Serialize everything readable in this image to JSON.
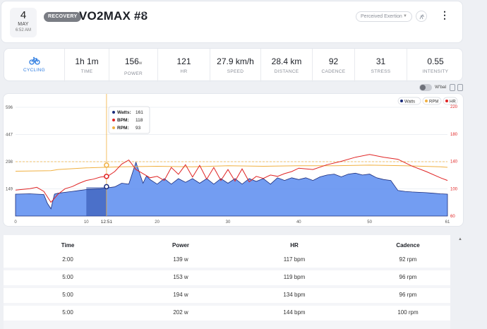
{
  "header": {
    "date_day": "4",
    "date_month": "MAY",
    "date_time": "6:52 AM",
    "badge": "RECOVERY",
    "title": "VO2MAX #8",
    "pencil_icon": "pencil-icon",
    "perceived_exertion_placeholder": "Perceived Exertion",
    "strava_icon": "strava-icon",
    "menu_icon": "more-vertical-icon"
  },
  "stats": [
    {
      "value": "",
      "unit": "",
      "label": "CYCLING",
      "icon": "bicycle-icon"
    },
    {
      "value": "1h 1m",
      "unit": "",
      "label": "TIME"
    },
    {
      "value": "156",
      "unit": "w",
      "label": "POWER"
    },
    {
      "value": "121",
      "unit": "",
      "label": "HR"
    },
    {
      "value": "27.9 km/h",
      "unit": "",
      "label": "SPEED"
    },
    {
      "value": "28.4 km",
      "unit": "",
      "label": "DISTANCE"
    },
    {
      "value": "92",
      "unit": "",
      "label": "CADENCE"
    },
    {
      "value": "31",
      "unit": "",
      "label": "STRESS"
    },
    {
      "value": "0.55",
      "unit": "",
      "label": "INTENSITY"
    }
  ],
  "chart_toolbar": {
    "wbal_label": "W'bal"
  },
  "chart_data": {
    "type": "area",
    "x_ticks": [
      "0",
      "10",
      "20",
      "30",
      "40",
      "50",
      "61"
    ],
    "x_range": [
      0,
      61
    ],
    "y_left_ticks": [
      "596",
      "447",
      "298",
      "149"
    ],
    "y_left_range": [
      0,
      600
    ],
    "y_right_ticks": [
      "220",
      "180",
      "140",
      "100",
      "60"
    ],
    "y_right_range": [
      60,
      220
    ],
    "threshold_watts": 298,
    "cursor_x_label": "12:51",
    "cursor_minute": 12.85,
    "legend": [
      {
        "name": "Watts",
        "color": "#1a2b7a"
      },
      {
        "name": "RPM",
        "color": "#f0b040"
      },
      {
        "name": "HR",
        "color": "#e02424"
      }
    ],
    "tooltip": [
      {
        "label": "Watts:",
        "value": "161",
        "color": "#1a2b7a"
      },
      {
        "label": "BPM:",
        "value": "118",
        "color": "#e02424"
      },
      {
        "label": "RPM:",
        "value": "93",
        "color": "#f0b040"
      }
    ],
    "series": [
      {
        "name": "Watts",
        "x": [
          0,
          2,
          4,
          4.5,
          5,
          5.5,
          6,
          7,
          8,
          9,
          10,
          12,
          13,
          14,
          15,
          16,
          17,
          18,
          18.5,
          19,
          20,
          21,
          22,
          23,
          24,
          25,
          26,
          27,
          28,
          29,
          30,
          31,
          32,
          33,
          34,
          35,
          36,
          37,
          38,
          39,
          40,
          41,
          42,
          43,
          44,
          45,
          46,
          47,
          48,
          49,
          50,
          51,
          52,
          53,
          54,
          55,
          56,
          57,
          58,
          59,
          60,
          61
        ],
        "values": [
          120,
          122,
          118,
          70,
          40,
          120,
          125,
          130,
          135,
          140,
          145,
          150,
          155,
          160,
          180,
          175,
          295,
          180,
          220,
          200,
          175,
          205,
          175,
          205,
          185,
          205,
          180,
          205,
          175,
          205,
          180,
          205,
          175,
          205,
          190,
          205,
          175,
          210,
          195,
          210,
          200,
          210,
          195,
          215,
          225,
          230,
          215,
          230,
          235,
          225,
          230,
          210,
          200,
          195,
          140,
          135,
          132,
          130,
          128,
          125,
          122,
          120
        ]
      },
      {
        "name": "HR",
        "x": [
          0,
          2,
          3,
          4,
          5,
          6,
          7,
          8,
          9,
          10,
          11,
          12,
          13,
          14,
          15,
          16,
          17,
          18,
          19,
          20,
          21,
          22,
          23,
          24,
          25,
          26,
          27,
          28,
          29,
          30,
          31,
          32,
          33,
          34,
          35,
          36,
          37,
          38,
          39,
          40,
          42,
          44,
          46,
          48,
          50,
          52,
          54,
          56,
          58,
          60,
          61
        ],
        "values": [
          98,
          100,
          102,
          96,
          80,
          92,
          100,
          103,
          108,
          112,
          114,
          117,
          118,
          125,
          136,
          142,
          128,
          122,
          116,
          118,
          112,
          131,
          121,
          135,
          117,
          134,
          114,
          131,
          112,
          128,
          111,
          129,
          110,
          118,
          115,
          120,
          118,
          122,
          125,
          130,
          128,
          135,
          140,
          146,
          150,
          146,
          143,
          133,
          125,
          116,
          112
        ]
      },
      {
        "name": "RPM",
        "x": [
          0,
          5,
          6,
          10,
          15,
          20,
          25,
          30,
          35,
          40,
          45,
          50,
          55,
          60,
          61
        ],
        "values": [
          82,
          83,
          85,
          88,
          90,
          91,
          90,
          92,
          91,
          92,
          92,
          93,
          92,
          90,
          89
        ]
      }
    ]
  },
  "table": {
    "headers": [
      "Time",
      "Power",
      "HR",
      "Cadence"
    ],
    "rows": [
      [
        "2:00",
        "139 w",
        "117 bpm",
        "92 rpm"
      ],
      [
        "5:00",
        "153 w",
        "119 bpm",
        "96 rpm"
      ],
      [
        "5:00",
        "194 w",
        "134 bpm",
        "96 rpm"
      ],
      [
        "5:00",
        "202 w",
        "144 bpm",
        "100 rpm"
      ]
    ]
  }
}
